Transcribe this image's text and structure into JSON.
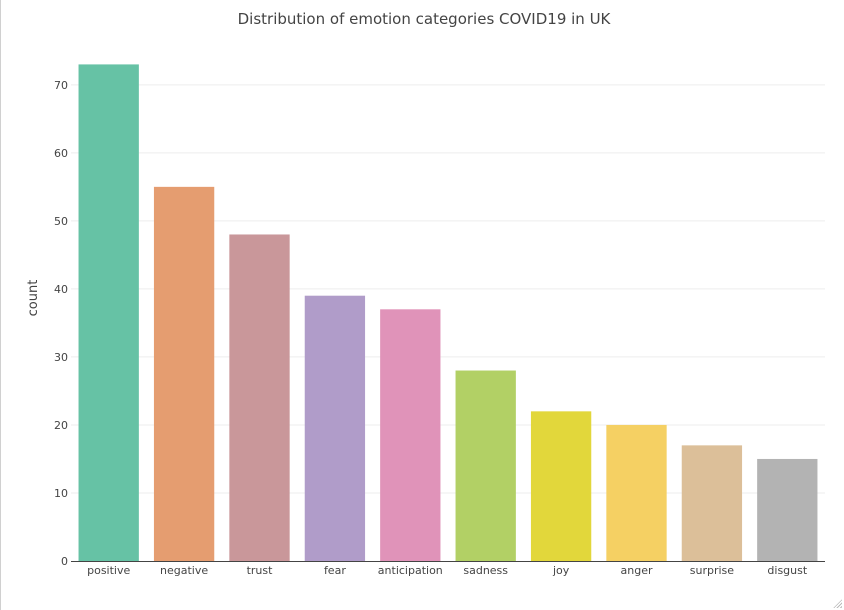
{
  "chart_data": {
    "type": "bar",
    "title": "Distribution of emotion categories COVID19 in UK",
    "xlabel": "",
    "ylabel": "count",
    "categories": [
      "positive",
      "negative",
      "trust",
      "fear",
      "anticipation",
      "sadness",
      "joy",
      "anger",
      "surprise",
      "disgust"
    ],
    "values": [
      73,
      55,
      48,
      39,
      37,
      28,
      22,
      20,
      17,
      15
    ],
    "colors": [
      "#66c2a5",
      "#e59d70",
      "#c9979a",
      "#b09cc9",
      "#e093b9",
      "#b2d065",
      "#e2d73b",
      "#f5d063",
      "#dcbf99",
      "#b3b3b3"
    ],
    "ylim": [
      0,
      76
    ],
    "yticks": [
      0,
      10,
      20,
      30,
      40,
      50,
      60,
      70
    ],
    "grid": true,
    "legend": "none"
  }
}
